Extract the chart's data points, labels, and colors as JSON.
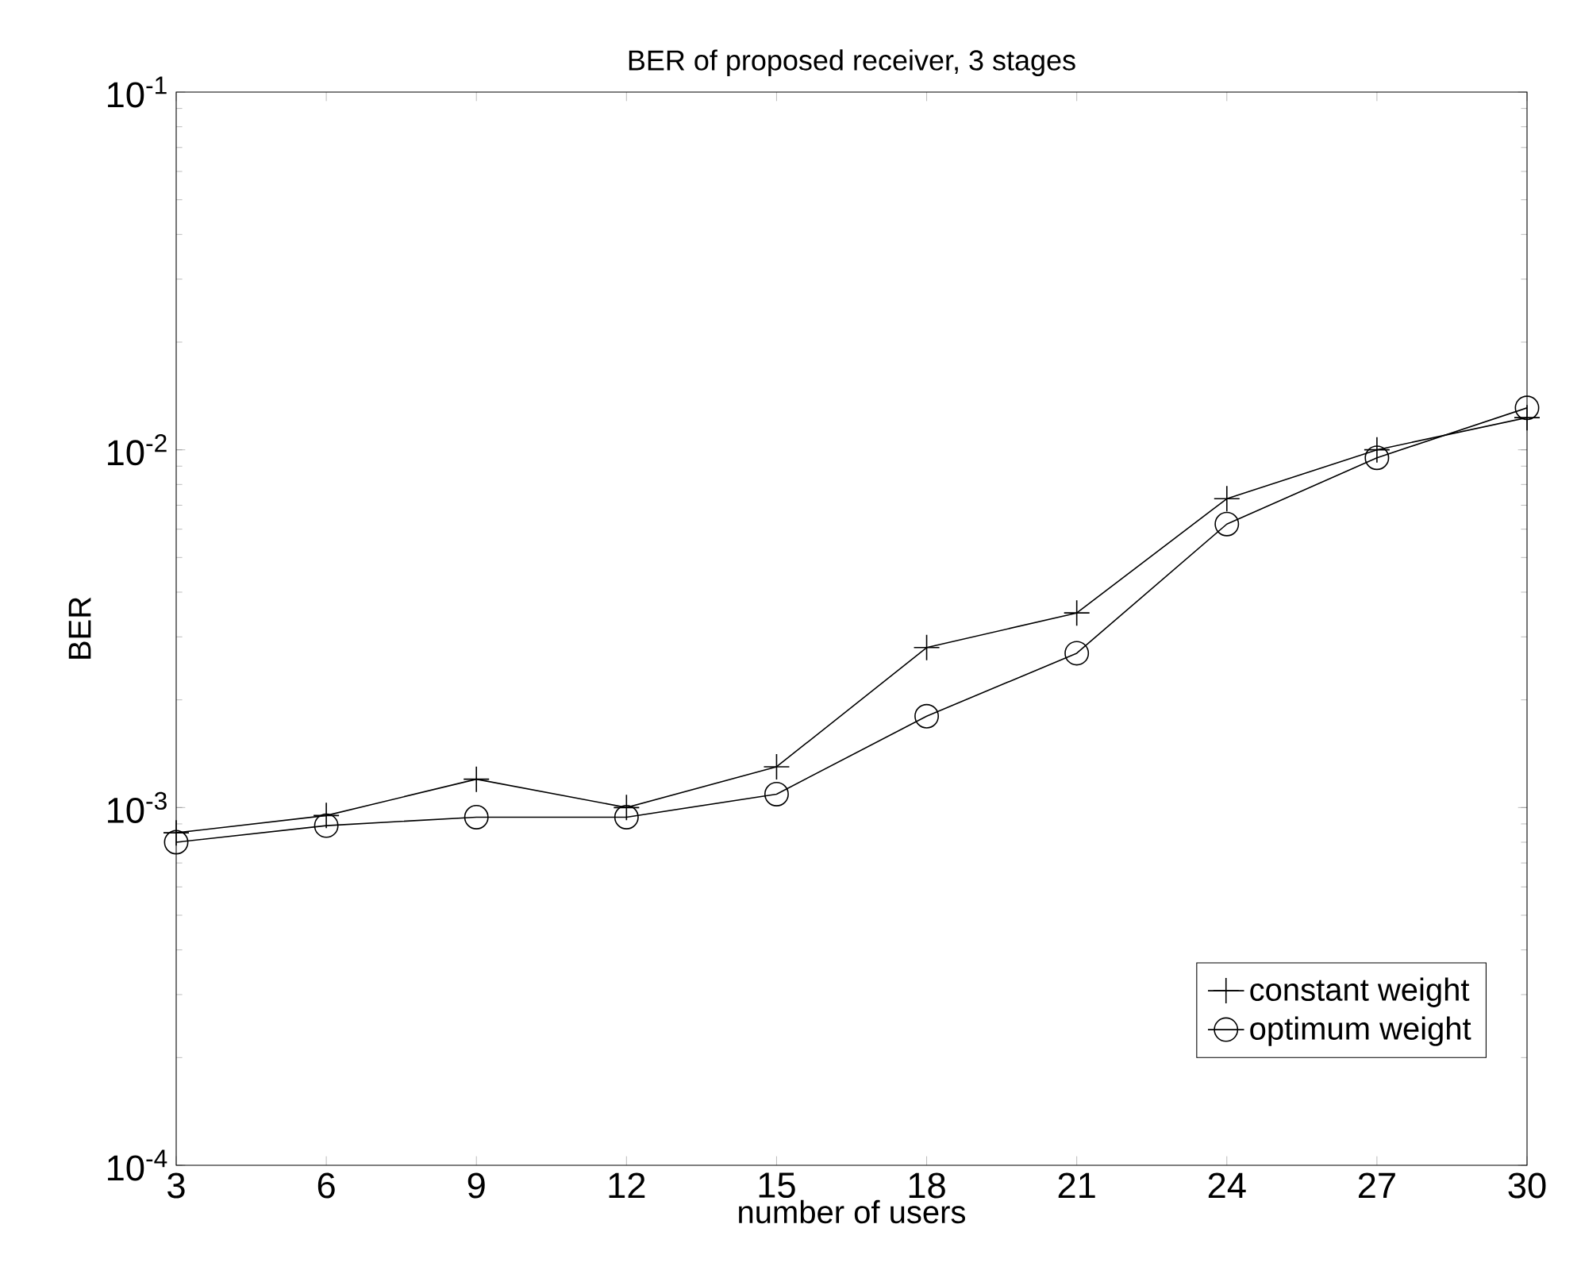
{
  "chart_data": {
    "type": "line",
    "title": "BER of proposed receiver, 3 stages",
    "xlabel": "number of users",
    "ylabel": "BER",
    "x": [
      3,
      6,
      9,
      12,
      15,
      18,
      21,
      24,
      27,
      30
    ],
    "series": [
      {
        "name": "constant weight",
        "color": "#000000",
        "marker": "cross",
        "values": [
          0.00085,
          0.00095,
          0.0012,
          0.001,
          0.0013,
          0.0028,
          0.0035,
          0.0073,
          0.01,
          0.0123
        ]
      },
      {
        "name": "optimum weight",
        "color": "#000000",
        "marker": "circle",
        "values": [
          0.0008,
          0.00089,
          0.00094,
          0.00094,
          0.00109,
          0.0018,
          0.0027,
          0.0062,
          0.0095,
          0.0131
        ]
      }
    ],
    "log": "y",
    "xlim": [
      3,
      30
    ],
    "ylim": [
      0.0001,
      0.1
    ],
    "xticks": [
      3,
      6,
      9,
      12,
      15,
      18,
      21,
      24,
      27,
      30
    ],
    "yticks": [
      {
        "value": 0.0001,
        "label": "10$^{-4}$"
      },
      {
        "value": 0.001,
        "label": "10$^{-3}$"
      },
      {
        "value": 0.01,
        "label": "10$^{-2}$"
      },
      {
        "value": 0.1,
        "label": "10$^{-1}$"
      }
    ],
    "grid": false,
    "legend": "bottom right",
    "line_style": "solid"
  }
}
